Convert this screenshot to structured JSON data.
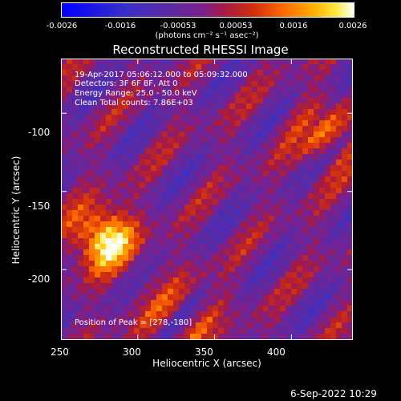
{
  "colorbar": {
    "ticks": [
      "-0.0026",
      "-0.0016",
      "-0.00053",
      "0.00053",
      "0.0016",
      "0.0026"
    ],
    "units": "(photons cm⁻² s⁻¹ asec⁻²)"
  },
  "chart_data": {
    "type": "heatmap",
    "title": "Reconstructed RHESSI Image",
    "xlabel": "Heliocentric X (arcsec)",
    "ylabel": "Heliocentric Y (arcsec)",
    "xlim": [
      250,
      440
    ],
    "ylim": [
      -245,
      -65
    ],
    "xticks": [
      "250",
      "300",
      "350",
      "400"
    ],
    "yticks": [
      "-100",
      "-150",
      "-200"
    ],
    "color_range": [
      -0.0026,
      0.0026
    ],
    "annotations": [
      "19-Apr-2017 05:06:12.000 to 05:09:32.000",
      "Detectors: 3F 6F 8F, Att 0",
      "Energy Range: 25.0 - 50.0 keV",
      "Clean     Total counts: 7.86E+03"
    ],
    "peak_label": "Position of Peak = [278,-180]",
    "peak": [
      278,
      -180
    ]
  },
  "footer": {
    "timestamp": "6-Sep-2022 10:29"
  }
}
